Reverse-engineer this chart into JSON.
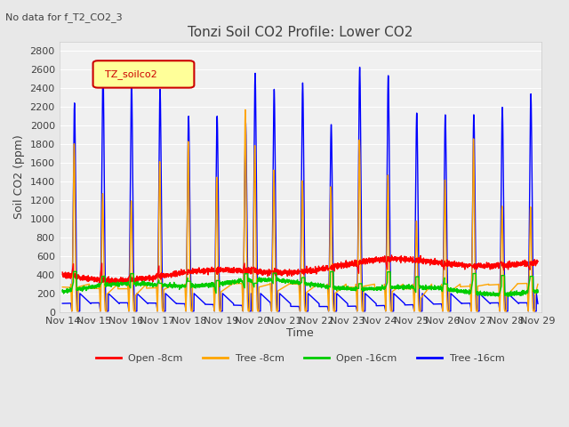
{
  "title": "Tonzi Soil CO2 Profile: Lower CO2",
  "subtitle": "No data for f_T2_CO2_3",
  "ylabel": "Soil CO2 (ppm)",
  "xlabel": "Time",
  "legend_label": "TZ_soilco2",
  "ylim": [
    0,
    2900
  ],
  "yticks": [
    0,
    200,
    400,
    600,
    800,
    1000,
    1200,
    1400,
    1600,
    1800,
    2000,
    2200,
    2400,
    2600,
    2800
  ],
  "series_labels": [
    "Open -8cm",
    "Tree -8cm",
    "Open -16cm",
    "Tree -16cm"
  ],
  "series_colors": [
    "#ff0000",
    "#ffa500",
    "#00cc00",
    "#0000ff"
  ],
  "background_color": "#e8e8e8",
  "plot_bg_color": "#f0f0f0",
  "xstart": 14,
  "xend": 29,
  "num_points": 3600
}
